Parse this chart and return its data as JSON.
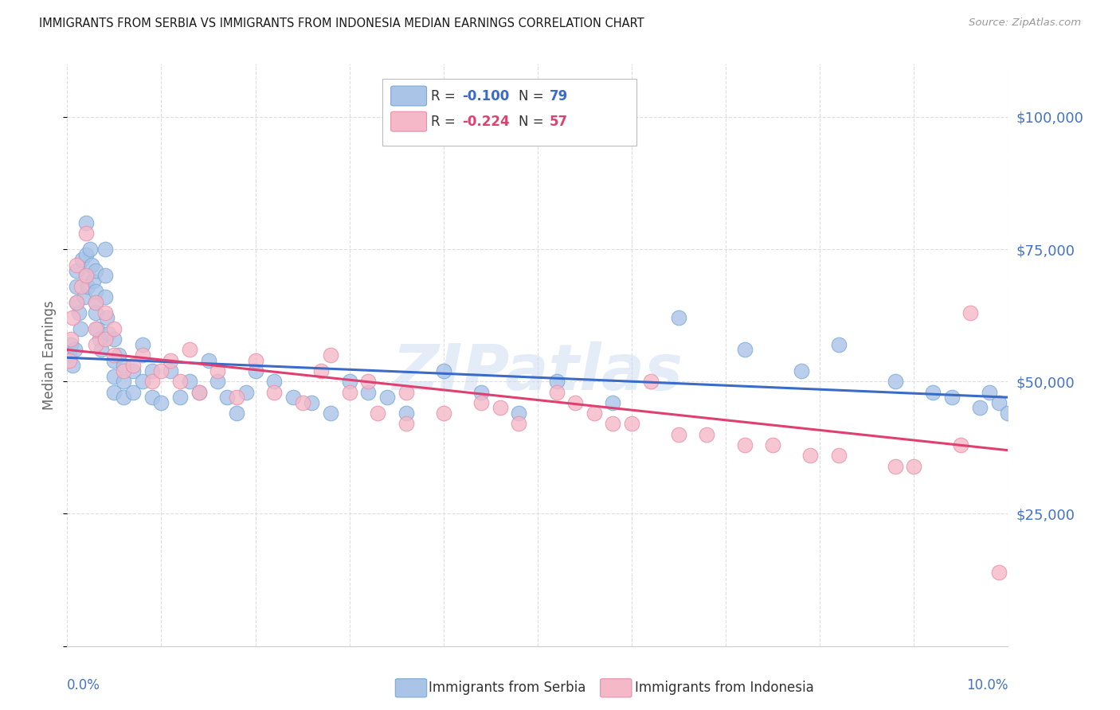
{
  "title": "IMMIGRANTS FROM SERBIA VS IMMIGRANTS FROM INDONESIA MEDIAN EARNINGS CORRELATION CHART",
  "source": "Source: ZipAtlas.com",
  "ylabel": "Median Earnings",
  "xmin": 0.0,
  "xmax": 0.1,
  "ymin": 0,
  "ymax": 110000,
  "yticks": [
    0,
    25000,
    50000,
    75000,
    100000
  ],
  "ytick_labels": [
    "",
    "$25,000",
    "$50,000",
    "$75,000",
    "$100,000"
  ],
  "serbia_color": "#aac4e8",
  "serbia_edge": "#7aaad4",
  "indonesia_color": "#f5b8c8",
  "indonesia_edge": "#e890a8",
  "serbia_line_color": "#3a6bc9",
  "indonesia_line_color": "#e04070",
  "serbia_R": -0.1,
  "serbia_N": 79,
  "indonesia_R": -0.224,
  "indonesia_N": 57,
  "serbia_intercept": 54500,
  "serbia_slope": -75000,
  "indonesia_intercept": 56000,
  "indonesia_slope": -190000,
  "watermark": "ZIPatlas",
  "background_color": "#ffffff",
  "grid_color": "#dddddd",
  "axis_label_color": "#4472c4",
  "title_color": "#1a1a1a",
  "serbia_points_x": [
    0.0002,
    0.0004,
    0.0006,
    0.0008,
    0.001,
    0.001,
    0.001,
    0.0012,
    0.0014,
    0.0016,
    0.0018,
    0.002,
    0.002,
    0.002,
    0.0022,
    0.0024,
    0.0026,
    0.0028,
    0.003,
    0.003,
    0.003,
    0.003,
    0.0032,
    0.0034,
    0.0036,
    0.004,
    0.004,
    0.004,
    0.0042,
    0.0044,
    0.005,
    0.005,
    0.005,
    0.005,
    0.0055,
    0.006,
    0.006,
    0.006,
    0.007,
    0.007,
    0.008,
    0.008,
    0.009,
    0.009,
    0.01,
    0.011,
    0.012,
    0.013,
    0.014,
    0.015,
    0.016,
    0.017,
    0.018,
    0.019,
    0.02,
    0.022,
    0.024,
    0.026,
    0.028,
    0.03,
    0.032,
    0.034,
    0.036,
    0.04,
    0.044,
    0.048,
    0.052,
    0.058,
    0.065,
    0.072,
    0.078,
    0.082,
    0.088,
    0.092,
    0.094,
    0.097,
    0.098,
    0.099,
    0.1
  ],
  "serbia_points_y": [
    55000,
    57000,
    53000,
    56000,
    68000,
    71000,
    65000,
    63000,
    60000,
    73000,
    66000,
    80000,
    74000,
    70000,
    68000,
    75000,
    72000,
    69000,
    65000,
    71000,
    67000,
    63000,
    60000,
    58000,
    56000,
    75000,
    70000,
    66000,
    62000,
    59000,
    58000,
    54000,
    51000,
    48000,
    55000,
    53000,
    50000,
    47000,
    52000,
    48000,
    57000,
    50000,
    52000,
    47000,
    46000,
    52000,
    47000,
    50000,
    48000,
    54000,
    50000,
    47000,
    44000,
    48000,
    52000,
    50000,
    47000,
    46000,
    44000,
    50000,
    48000,
    47000,
    44000,
    52000,
    48000,
    44000,
    50000,
    46000,
    62000,
    56000,
    52000,
    57000,
    50000,
    48000,
    47000,
    45000,
    48000,
    46000,
    44000
  ],
  "indonesia_points_x": [
    0.0002,
    0.0004,
    0.0006,
    0.001,
    0.001,
    0.0015,
    0.002,
    0.002,
    0.003,
    0.003,
    0.003,
    0.004,
    0.004,
    0.005,
    0.005,
    0.006,
    0.007,
    0.008,
    0.009,
    0.01,
    0.011,
    0.012,
    0.013,
    0.014,
    0.016,
    0.018,
    0.02,
    0.022,
    0.025,
    0.028,
    0.032,
    0.036,
    0.04,
    0.044,
    0.048,
    0.052,
    0.056,
    0.062,
    0.027,
    0.03,
    0.033,
    0.036,
    0.046,
    0.054,
    0.06,
    0.068,
    0.075,
    0.082,
    0.09,
    0.095,
    0.099,
    0.058,
    0.065,
    0.072,
    0.079,
    0.088,
    0.096
  ],
  "indonesia_points_y": [
    54000,
    58000,
    62000,
    72000,
    65000,
    68000,
    78000,
    70000,
    65000,
    60000,
    57000,
    63000,
    58000,
    55000,
    60000,
    52000,
    53000,
    55000,
    50000,
    52000,
    54000,
    50000,
    56000,
    48000,
    52000,
    47000,
    54000,
    48000,
    46000,
    55000,
    50000,
    48000,
    44000,
    46000,
    42000,
    48000,
    44000,
    50000,
    52000,
    48000,
    44000,
    42000,
    45000,
    46000,
    42000,
    40000,
    38000,
    36000,
    34000,
    38000,
    14000,
    42000,
    40000,
    38000,
    36000,
    34000,
    63000
  ]
}
